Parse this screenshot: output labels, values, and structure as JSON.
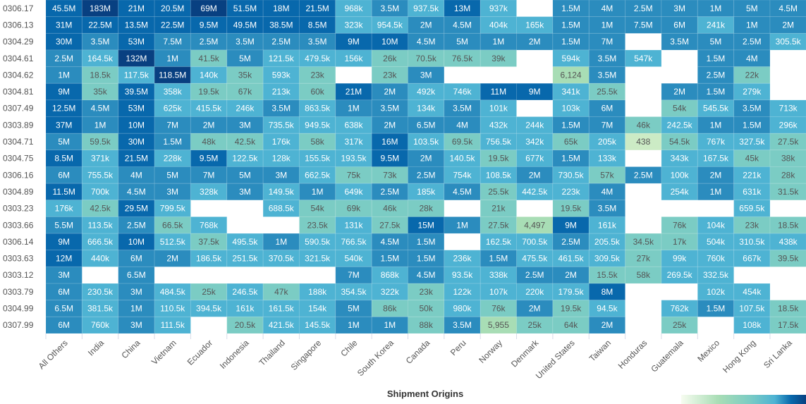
{
  "chart_data": {
    "type": "heatmap",
    "xlabel": "Shipment Origins",
    "ylabel": "",
    "columns": [
      "All Others",
      "India",
      "China",
      "Vietnam",
      "Ecuador",
      "Indonesia",
      "Thailand",
      "Singapore",
      "Chile",
      "South Korea",
      "Canada",
      "Peru",
      "Norway",
      "Denmark",
      "United States",
      "Taiwan",
      "Honduras",
      "Guatemala",
      "Mexico",
      "Hong Kong",
      "Sri Lanka"
    ],
    "rows": [
      "0306.17",
      "0306.13",
      "0304.29",
      "0304.61",
      "0304.62",
      "0304.81",
      "0307.49",
      "0303.89",
      "0304.71",
      "0304.75",
      "0306.16",
      "0304.89",
      "0303.23",
      "0303.66",
      "0306.14",
      "0303.63",
      "0303.12",
      "0303.79",
      "0304.99",
      "0307.99"
    ],
    "cells": [
      [
        "45.5M",
        "183M",
        "21M",
        "20.5M",
        "69M",
        "51.5M",
        "18M",
        "21.5M",
        "968k",
        "3.5M",
        "937.5k",
        "13M",
        "937k",
        "",
        "1.5M",
        "4M",
        "2.5M",
        "3M",
        "1M",
        "5M",
        "4.5M"
      ],
      [
        "31M",
        "22.5M",
        "13.5M",
        "22.5M",
        "9.5M",
        "49.5M",
        "38.5M",
        "8.5M",
        "323k",
        "954.5k",
        "2M",
        "4.5M",
        "404k",
        "165k",
        "1.5M",
        "1M",
        "7.5M",
        "6M",
        "241k",
        "1M",
        "2M"
      ],
      [
        "30M",
        "3.5M",
        "53M",
        "7.5M",
        "2.5M",
        "3.5M",
        "2.5M",
        "3.5M",
        "9M",
        "10M",
        "4.5M",
        "5M",
        "1M",
        "2M",
        "1.5M",
        "7M",
        "",
        "3.5M",
        "5M",
        "2.5M",
        "305.5k"
      ],
      [
        "2.5M",
        "164.5k",
        "132M",
        "1M",
        "41.5k",
        "5M",
        "121.5k",
        "479.5k",
        "156k",
        "26k",
        "70.5k",
        "76.5k",
        "39k",
        "",
        "594k",
        "3.5M",
        "547k",
        "",
        "1.5M",
        "4M",
        ""
      ],
      [
        "1M",
        "18.5k",
        "117.5k",
        "118.5M",
        "140k",
        "35k",
        "593k",
        "23k",
        "",
        "23k",
        "3M",
        "",
        "",
        "",
        "6,124",
        "3.5M",
        "",
        "",
        "2.5M",
        "22k",
        ""
      ],
      [
        "9M",
        "35k",
        "39.5M",
        "358k",
        "19.5k",
        "67k",
        "213k",
        "60k",
        "21M",
        "2M",
        "492k",
        "746k",
        "11M",
        "9M",
        "341k",
        "25.5k",
        "",
        "2M",
        "1.5M",
        "279k",
        ""
      ],
      [
        "12.5M",
        "4.5M",
        "53M",
        "625k",
        "415.5k",
        "246k",
        "3.5M",
        "863.5k",
        "1M",
        "3.5M",
        "134k",
        "3.5M",
        "101k",
        "",
        "103k",
        "6M",
        "",
        "54k",
        "545.5k",
        "3.5M",
        "713k"
      ],
      [
        "37M",
        "1M",
        "10M",
        "7M",
        "2M",
        "3M",
        "735.5k",
        "949.5k",
        "638k",
        "2M",
        "6.5M",
        "4M",
        "432k",
        "244k",
        "1.5M",
        "7M",
        "46k",
        "242.5k",
        "1M",
        "1.5M",
        "296k"
      ],
      [
        "5M",
        "59.5k",
        "30M",
        "1.5M",
        "48k",
        "42.5k",
        "176k",
        "58k",
        "317k",
        "16M",
        "103.5k",
        "69.5k",
        "756.5k",
        "342k",
        "65k",
        "205k",
        "438",
        "54.5k",
        "767k",
        "327.5k",
        "27.5k"
      ],
      [
        "8.5M",
        "371k",
        "21.5M",
        "228k",
        "9.5M",
        "122.5k",
        "128k",
        "155.5k",
        "193.5k",
        "9.5M",
        "2M",
        "140.5k",
        "19.5k",
        "677k",
        "1.5M",
        "133k",
        "",
        "343k",
        "167.5k",
        "45k",
        "38k"
      ],
      [
        "6M",
        "755.5k",
        "4M",
        "5M",
        "7M",
        "5M",
        "3M",
        "662.5k",
        "75k",
        "73k",
        "2.5M",
        "754k",
        "108.5k",
        "2M",
        "730.5k",
        "57k",
        "2.5M",
        "100k",
        "2M",
        "221k",
        "28k"
      ],
      [
        "11.5M",
        "700k",
        "4.5M",
        "3M",
        "328k",
        "3M",
        "149.5k",
        "1M",
        "649k",
        "2.5M",
        "185k",
        "4.5M",
        "25.5k",
        "442.5k",
        "223k",
        "4M",
        "",
        "254k",
        "1M",
        "631k",
        "31.5k"
      ],
      [
        "176k",
        "42.5k",
        "29.5M",
        "799.5k",
        "",
        "",
        "688.5k",
        "54k",
        "69k",
        "46k",
        "28k",
        "",
        "21k",
        "",
        "19.5k",
        "3.5M",
        "",
        "",
        "",
        "659.5k",
        ""
      ],
      [
        "5.5M",
        "113.5k",
        "2.5M",
        "66.5k",
        "768k",
        "",
        "",
        "23.5k",
        "131k",
        "27.5k",
        "15M",
        "1M",
        "27.5k",
        "4,497",
        "9M",
        "161k",
        "",
        "76k",
        "104k",
        "23k",
        "18.5k"
      ],
      [
        "9M",
        "666.5k",
        "10M",
        "512.5k",
        "37.5k",
        "495.5k",
        "1M",
        "590.5k",
        "766.5k",
        "4.5M",
        "1.5M",
        "",
        "162.5k",
        "700.5k",
        "2.5M",
        "205.5k",
        "34.5k",
        "17k",
        "504k",
        "310.5k",
        "438k"
      ],
      [
        "12M",
        "440k",
        "6M",
        "2M",
        "186.5k",
        "251.5k",
        "370.5k",
        "321.5k",
        "540k",
        "1.5M",
        "1.5M",
        "236k",
        "1.5M",
        "475.5k",
        "461.5k",
        "309.5k",
        "27k",
        "99k",
        "760k",
        "667k",
        "39.5k"
      ],
      [
        "3M",
        "",
        "6.5M",
        "",
        "",
        "",
        "",
        "",
        "7M",
        "868k",
        "4.5M",
        "93.5k",
        "338k",
        "2.5M",
        "2M",
        "15.5k",
        "58k",
        "269.5k",
        "332.5k",
        "",
        ""
      ],
      [
        "6M",
        "230.5k",
        "3M",
        "484.5k",
        "25k",
        "246.5k",
        "47k",
        "188k",
        "354.5k",
        "322k",
        "23k",
        "122k",
        "107k",
        "220k",
        "179.5k",
        "8M",
        "",
        "",
        "102k",
        "454k",
        ""
      ],
      [
        "6.5M",
        "381.5k",
        "1M",
        "110.5k",
        "394.5k",
        "161k",
        "161.5k",
        "154k",
        "5M",
        "86k",
        "50k",
        "980k",
        "76k",
        "2M",
        "19.5k",
        "94.5k",
        "",
        "762k",
        "1.5M",
        "107.5k",
        "18.5k"
      ],
      [
        "6M",
        "760k",
        "3M",
        "111.5k",
        "",
        "20.5k",
        "421.5k",
        "145.5k",
        "1M",
        "1M",
        "88k",
        "3.5M",
        "5,955",
        "25k",
        "64k",
        "2M",
        "",
        "25k",
        "",
        "108k",
        "17.5k"
      ]
    ],
    "color_scale": [
      "#eaf6e2",
      "#a6dbb4",
      "#7acbc4",
      "#4db1d6",
      "#2b8bc0",
      "#0f66ac",
      "#0a3d7e"
    ],
    "legend": "bottom-right"
  }
}
